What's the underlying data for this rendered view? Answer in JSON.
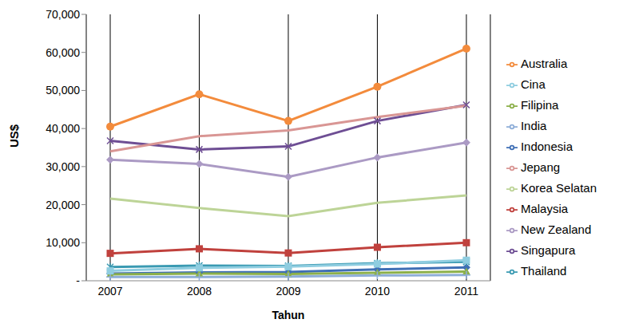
{
  "chart_data": {
    "type": "line",
    "x_label": "Tahun",
    "y_label": "US$",
    "categories": [
      "2007",
      "2008",
      "2009",
      "2010",
      "2011"
    ],
    "ylim": [
      0,
      70000
    ],
    "yticks": [
      {
        "value": 0,
        "label": "-"
      },
      {
        "value": 10000,
        "label": "10,000"
      },
      {
        "value": 20000,
        "label": "20,000"
      },
      {
        "value": 30000,
        "label": "30,000"
      },
      {
        "value": 40000,
        "label": "40,000"
      },
      {
        "value": 50000,
        "label": "50,000"
      },
      {
        "value": 60000,
        "label": "60,000"
      },
      {
        "value": 70000,
        "label": "70,000"
      }
    ],
    "grid": true,
    "legend": "right",
    "series": [
      {
        "name": "Indonesia",
        "color": "#3f6fb5",
        "marker": "diamond",
        "values": [
          1900,
          2200,
          2300,
          3000,
          3500
        ]
      },
      {
        "name": "Malaysia",
        "color": "#c0413d",
        "marker": "square",
        "values": [
          7200,
          8400,
          7300,
          8800,
          10000
        ]
      },
      {
        "name": "Filipina",
        "color": "#8cb04a",
        "marker": "triangle",
        "values": [
          1700,
          1900,
          1800,
          2100,
          2400
        ]
      },
      {
        "name": "Singapura",
        "color": "#6e4e94",
        "marker": "x",
        "values": [
          36800,
          34500,
          35300,
          42000,
          46200
        ]
      },
      {
        "name": "Thailand",
        "color": "#3a9ab2",
        "marker": "star",
        "values": [
          3600,
          4000,
          3900,
          4600,
          5000
        ]
      },
      {
        "name": "Australia",
        "color": "#f38b3c",
        "marker": "circle",
        "values": [
          40500,
          49000,
          42000,
          51000,
          61000
        ]
      },
      {
        "name": "India",
        "color": "#8eaed8",
        "marker": "plus",
        "values": [
          1000,
          1000,
          1100,
          1400,
          1500
        ]
      },
      {
        "name": "Jepang",
        "color": "#d99694",
        "marker": "none",
        "values": [
          34000,
          38000,
          39500,
          43000,
          46000
        ]
      },
      {
        "name": "Korea Selatan",
        "color": "#bdd497",
        "marker": "none",
        "values": [
          21600,
          19100,
          17000,
          20500,
          22400
        ]
      },
      {
        "name": "New Zealand",
        "color": "#ab9ac4",
        "marker": "diamond",
        "values": [
          31800,
          30700,
          27300,
          32400,
          36300
        ]
      },
      {
        "name": "Cina",
        "color": "#8fcde0",
        "marker": "square",
        "values": [
          2600,
          3400,
          3700,
          4400,
          5400
        ]
      }
    ]
  }
}
